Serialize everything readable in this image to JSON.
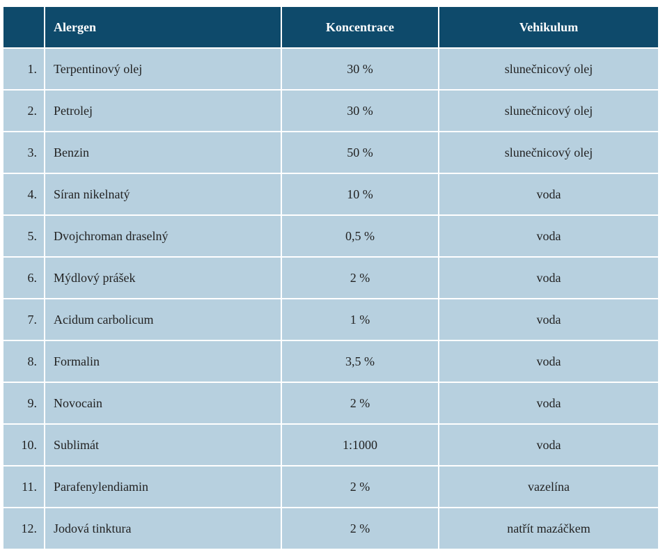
{
  "table": {
    "headers": {
      "number": "",
      "allergen": "Alergen",
      "concentration": "Koncentrace",
      "vehicle": "Vehikulum"
    },
    "rows": [
      {
        "num": "1.",
        "allergen": "Terpentinový olej",
        "concentration": "30 %",
        "vehicle": "slunečnicový olej"
      },
      {
        "num": "2.",
        "allergen": "Petrolej",
        "concentration": "30 %",
        "vehicle": "slunečnicový olej"
      },
      {
        "num": "3.",
        "allergen": "Benzin",
        "concentration": "50 %",
        "vehicle": "slunečnicový olej"
      },
      {
        "num": "4.",
        "allergen": "Síran nikelnatý",
        "concentration": "10 %",
        "vehicle": "voda"
      },
      {
        "num": "5.",
        "allergen": "Dvojchroman draselný",
        "concentration": "0,5 %",
        "vehicle": "voda"
      },
      {
        "num": "6.",
        "allergen": "Mýdlový prášek",
        "concentration": "2 %",
        "vehicle": "voda"
      },
      {
        "num": "7.",
        "allergen": "Acidum carbolicum",
        "concentration": "1 %",
        "vehicle": "voda"
      },
      {
        "num": "8.",
        "allergen": "Formalin",
        "concentration": "3,5 %",
        "vehicle": "voda"
      },
      {
        "num": "9.",
        "allergen": "Novocain",
        "concentration": "2 %",
        "vehicle": "voda"
      },
      {
        "num": "10.",
        "allergen": "Sublimát",
        "concentration": "1:1000",
        "vehicle": "voda"
      },
      {
        "num": "11.",
        "allergen": "Parafenylendiamin",
        "concentration": "2 %",
        "vehicle": "vazelína"
      },
      {
        "num": "12.",
        "allergen": "Jodová tinktura",
        "concentration": "2 %",
        "vehicle": "natřít mazáčkem"
      }
    ]
  },
  "colors": {
    "header_bg": "#0e4a6b",
    "row_bg": "#b7d0df"
  }
}
